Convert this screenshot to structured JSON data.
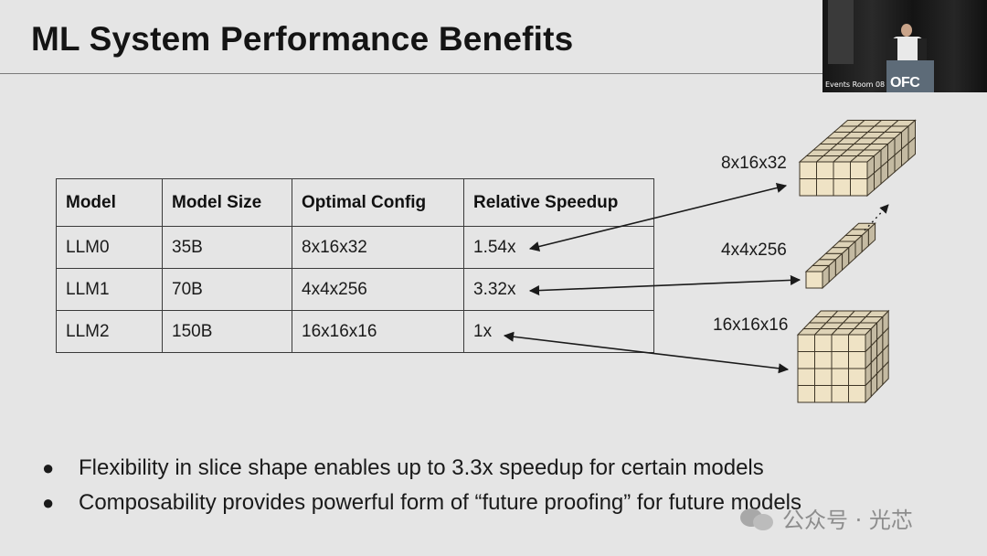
{
  "slide": {
    "title": "ML System Performance Benefits"
  },
  "webcam": {
    "room_label": "Events Room 08",
    "logo_text": "OFC"
  },
  "table": {
    "headers": [
      "Model",
      "Model Size",
      "Optimal Config",
      "Relative Speedup"
    ],
    "rows": [
      [
        "LLM0",
        "35B",
        "8x16x32",
        "1.54x"
      ],
      [
        "LLM1",
        "70B",
        "4x4x256",
        "3.32x"
      ],
      [
        "LLM2",
        "150B",
        "16x16x16",
        "1x"
      ]
    ]
  },
  "diagram": {
    "configs": [
      {
        "label": "8x16x32",
        "shape": "flat-slab"
      },
      {
        "label": "4x4x256",
        "shape": "long-rod"
      },
      {
        "label": "16x16x16",
        "shape": "cube"
      }
    ],
    "cube_fill": "#efe3c5",
    "cube_edge": "#3d3526"
  },
  "bullets": [
    "Flexibility in slice shape enables up to 3.3x speedup for certain models",
    "Composability provides powerful form of “future proofing” for future models"
  ],
  "watermark": {
    "text": "公众号 · 光芯",
    "icon": "wechat-icon"
  }
}
